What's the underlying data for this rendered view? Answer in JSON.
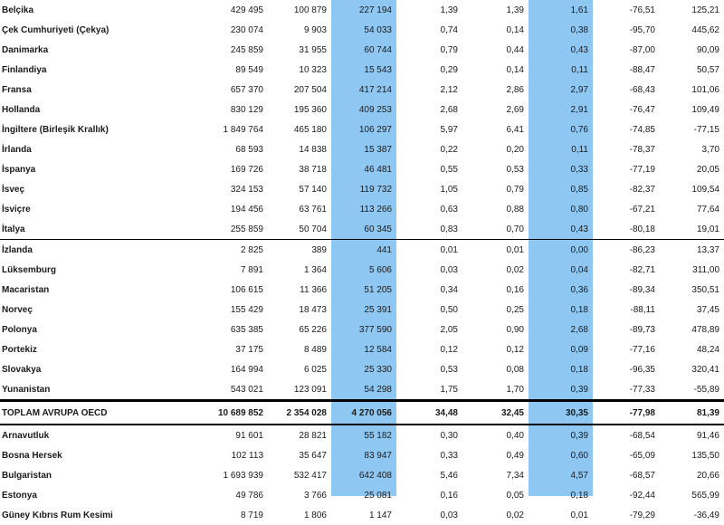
{
  "colors": {
    "highlight": "#8fc7f3",
    "rule": "#000000"
  },
  "rows": [
    {
      "name": "Belçika",
      "c1": "429 495",
      "c2": "100 879",
      "c3": "227 194",
      "c4": "1,39",
      "c5": "1,39",
      "c6": "1,61",
      "c7": "-76,51",
      "c8": "125,21"
    },
    {
      "name": "Çek Cumhuriyeti (Çekya)",
      "c1": "230 074",
      "c2": "9 903",
      "c3": "54 033",
      "c4": "0,74",
      "c5": "0,14",
      "c6": "0,38",
      "c7": "-95,70",
      "c8": "445,62"
    },
    {
      "name": "Danimarka",
      "c1": "245 859",
      "c2": "31 955",
      "c3": "60 744",
      "c4": "0,79",
      "c5": "0,44",
      "c6": "0,43",
      "c7": "-87,00",
      "c8": "90,09"
    },
    {
      "name": "Finlandiya",
      "c1": "89 549",
      "c2": "10 323",
      "c3": "15 543",
      "c4": "0,29",
      "c5": "0,14",
      "c6": "0,11",
      "c7": "-88,47",
      "c8": "50,57"
    },
    {
      "name": "Fransa",
      "c1": "657 370",
      "c2": "207 504",
      "c3": "417 214",
      "c4": "2,12",
      "c5": "2,86",
      "c6": "2,97",
      "c7": "-68,43",
      "c8": "101,06"
    },
    {
      "name": "Hollanda",
      "c1": "830 129",
      "c2": "195 360",
      "c3": "409 253",
      "c4": "2,68",
      "c5": "2,69",
      "c6": "2,91",
      "c7": "-76,47",
      "c8": "109,49"
    },
    {
      "name": "İngiltere (Birleşik Krallık)",
      "c1": "1 849 764",
      "c2": "465 180",
      "c3": "106 297",
      "c4": "5,97",
      "c5": "6,41",
      "c6": "0,76",
      "c7": "-74,85",
      "c8": "-77,15"
    },
    {
      "name": "İrlanda",
      "c1": "68 593",
      "c2": "14 838",
      "c3": "15 387",
      "c4": "0,22",
      "c5": "0,20",
      "c6": "0,11",
      "c7": "-78,37",
      "c8": "3,70"
    },
    {
      "name": "İspanya",
      "c1": "169 726",
      "c2": "38 718",
      "c3": "46 481",
      "c4": "0,55",
      "c5": "0,53",
      "c6": "0,33",
      "c7": "-77,19",
      "c8": "20,05"
    },
    {
      "name": "İsveç",
      "c1": "324 153",
      "c2": "57 140",
      "c3": "119 732",
      "c4": "1,05",
      "c5": "0,79",
      "c6": "0,85",
      "c7": "-82,37",
      "c8": "109,54"
    },
    {
      "name": "İsviçre",
      "c1": "194 456",
      "c2": "63 761",
      "c3": "113 266",
      "c4": "0,63",
      "c5": "0,88",
      "c6": "0,80",
      "c7": "-67,21",
      "c8": "77,64"
    },
    {
      "name": "İtalya",
      "c1": "255 859",
      "c2": "50 704",
      "c3": "60 345",
      "c4": "0,83",
      "c5": "0,70",
      "c6": "0,43",
      "c7": "-80,18",
      "c8": "19,01"
    },
    {
      "name": "İzlanda",
      "c1": "2 825",
      "c2": "389",
      "c3": "441",
      "c4": "0,01",
      "c5": "0,01",
      "c6": "0,00",
      "c7": "-86,23",
      "c8": "13,37"
    },
    {
      "name": "Lüksemburg",
      "c1": "7 891",
      "c2": "1 364",
      "c3": "5 606",
      "c4": "0,03",
      "c5": "0,02",
      "c6": "0,04",
      "c7": "-82,71",
      "c8": "311,00"
    },
    {
      "name": "Macaristan",
      "c1": "106 615",
      "c2": "11 366",
      "c3": "51 205",
      "c4": "0,34",
      "c5": "0,16",
      "c6": "0,36",
      "c7": "-89,34",
      "c8": "350,51"
    },
    {
      "name": "Norveç",
      "c1": "155 429",
      "c2": "18 473",
      "c3": "25 391",
      "c4": "0,50",
      "c5": "0,25",
      "c6": "0,18",
      "c7": "-88,11",
      "c8": "37,45"
    },
    {
      "name": "Polonya",
      "c1": "635 385",
      "c2": "65 226",
      "c3": "377 590",
      "c4": "2,05",
      "c5": "0,90",
      "c6": "2,68",
      "c7": "-89,73",
      "c8": "478,89"
    },
    {
      "name": "Portekiz",
      "c1": "37 175",
      "c2": "8 489",
      "c3": "12 584",
      "c4": "0,12",
      "c5": "0,12",
      "c6": "0,09",
      "c7": "-77,16",
      "c8": "48,24"
    },
    {
      "name": "Slovakya",
      "c1": "164 994",
      "c2": "6 025",
      "c3": "25 330",
      "c4": "0,53",
      "c5": "0,08",
      "c6": "0,18",
      "c7": "-96,35",
      "c8": "320,41"
    },
    {
      "name": "Yunanistan",
      "c1": "543 021",
      "c2": "123 091",
      "c3": "54 298",
      "c4": "1,75",
      "c5": "1,70",
      "c6": "0,39",
      "c7": "-77,33",
      "c8": "-55,89"
    },
    {
      "name": "TOPLAM AVRUPA OECD",
      "c1": "10 689 852",
      "c2": "2 354 028",
      "c3": "4 270 056",
      "c4": "34,48",
      "c5": "32,45",
      "c6": "30,35",
      "c7": "-77,98",
      "c8": "81,39"
    },
    {
      "name": "Arnavutluk",
      "c1": "91 601",
      "c2": "28 821",
      "c3": "55 182",
      "c4": "0,30",
      "c5": "0,40",
      "c6": "0,39",
      "c7": "-68,54",
      "c8": "91,46"
    },
    {
      "name": "Bosna Hersek",
      "c1": "102 113",
      "c2": "35 647",
      "c3": "83 947",
      "c4": "0,33",
      "c5": "0,49",
      "c6": "0,60",
      "c7": "-65,09",
      "c8": "135,50"
    },
    {
      "name": "Bulgaristan",
      "c1": "1 693 939",
      "c2": "532 417",
      "c3": "642 408",
      "c4": "5,46",
      "c5": "7,34",
      "c6": "4,57",
      "c7": "-68,57",
      "c8": "20,66"
    },
    {
      "name": "Estonya",
      "c1": "49 786",
      "c2": "3 766",
      "c3": "25 081",
      "c4": "0,16",
      "c5": "0,05",
      "c6": "0,18",
      "c7": "-92,44",
      "c8": "565,99"
    },
    {
      "name": "Güney Kıbrıs Rum Kesimi",
      "c1": "8 719",
      "c2": "1 806",
      "c3": "1 147",
      "c4": "0,03",
      "c5": "0,02",
      "c6": "0,01",
      "c7": "-79,29",
      "c8": "-36,49"
    }
  ]
}
